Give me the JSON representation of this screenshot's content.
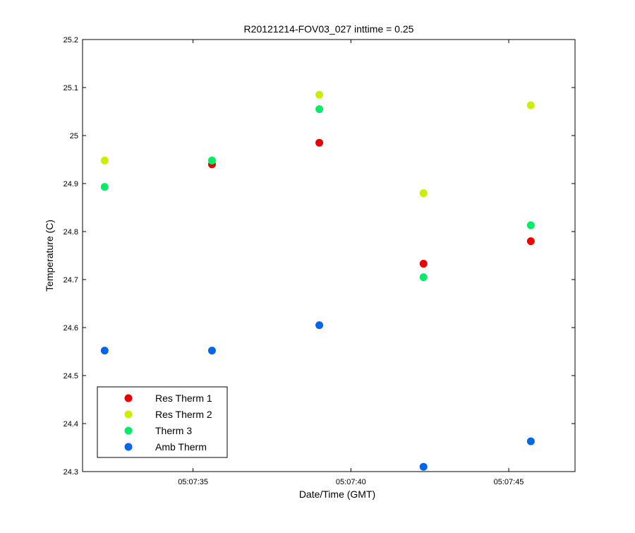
{
  "chart_data": {
    "type": "scatter",
    "title": "R20121214-FOV03_027 inttime = 0.25",
    "xlabel": "Date/Time (GMT)",
    "ylabel": "Temperature (C)",
    "x_unit": "time (HH:MM:SS)",
    "xlim": [
      "05:07:31.5",
      "05:07:47.1"
    ],
    "ylim": [
      24.3,
      25.2
    ],
    "x_ticks": [
      "05:07:35",
      "05:07:40",
      "05:07:45"
    ],
    "y_ticks": [
      "24.3",
      "24.4",
      "24.5",
      "24.6",
      "24.7",
      "24.8",
      "24.9",
      "25",
      "25.1",
      "25.2"
    ],
    "grid": false,
    "legend_position": "bottom-left",
    "x": [
      "05:07:32.2",
      "05:07:35.6",
      "05:07:39.0",
      "05:07:42.3",
      "05:07:45.7"
    ],
    "series": [
      {
        "name": "Res Therm 1",
        "color": "#ee0000",
        "values": [
          null,
          24.94,
          24.985,
          24.733,
          24.78
        ]
      },
      {
        "name": "Res Therm 2",
        "color": "#ccee00",
        "values": [
          24.948,
          24.948,
          25.085,
          24.88,
          25.063
        ]
      },
      {
        "name": "Therm 3",
        "color": "#00ee66",
        "values": [
          24.893,
          24.948,
          25.055,
          24.705,
          24.813
        ]
      },
      {
        "name": "Amb Therm",
        "color": "#0066ee",
        "values": [
          24.552,
          24.552,
          24.605,
          24.31,
          24.363
        ]
      }
    ]
  }
}
